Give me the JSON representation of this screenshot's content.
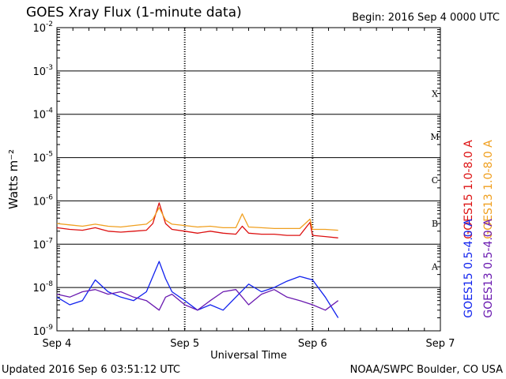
{
  "header": {
    "title": "GOES Xray Flux (1-minute data)",
    "begin": "Begin:  2016 Sep 4 0000 UTC"
  },
  "footer": {
    "updated": "Updated 2016 Sep  6 03:51:12 UTC",
    "credit": "NOAA/SWPC Boulder, CO USA"
  },
  "colors": {
    "goes15_long": "#dd1111",
    "goes13_long": "#f0a020",
    "goes15_short": "#1122ee",
    "goes13_short": "#6a1ab0"
  },
  "chart_data": {
    "type": "line",
    "title": "GOES Xray Flux (1-minute data)",
    "xlabel": "Universal Time",
    "ylabel": "Watts m⁻²",
    "yscale": "log",
    "ylim": [
      1e-09,
      0.01
    ],
    "xlim": [
      0,
      3
    ],
    "x_ticks": [
      {
        "x": 0,
        "label": "Sep 4"
      },
      {
        "x": 1,
        "label": "Sep 5"
      },
      {
        "x": 2,
        "label": "Sep 6"
      },
      {
        "x": 3,
        "label": "Sep 7"
      }
    ],
    "y_ticks": [
      {
        "exp": -9,
        "label": "10",
        "sup": "-9"
      },
      {
        "exp": -8,
        "label": "10",
        "sup": "-8"
      },
      {
        "exp": -7,
        "label": "10",
        "sup": "-7"
      },
      {
        "exp": -6,
        "label": "10",
        "sup": "-6"
      },
      {
        "exp": -5,
        "label": "10",
        "sup": "-5"
      },
      {
        "exp": -4,
        "label": "10",
        "sup": "-4"
      },
      {
        "exp": -3,
        "label": "10",
        "sup": "-3"
      },
      {
        "exp": -2,
        "label": "10",
        "sup": "-2"
      }
    ],
    "flare_classes": [
      {
        "label": "A",
        "exp": -8
      },
      {
        "label": "B",
        "exp": -7
      },
      {
        "label": "C",
        "exp": -6
      },
      {
        "label": "M",
        "exp": -5
      },
      {
        "label": "X",
        "exp": -4
      }
    ],
    "grid": true,
    "legend_position": "right",
    "series": [
      {
        "name": "GOES15 1.0-8.0 A",
        "color": "#dd1111",
        "x": [
          0,
          0.1,
          0.2,
          0.3,
          0.4,
          0.5,
          0.6,
          0.7,
          0.75,
          0.8,
          0.85,
          0.9,
          1.0,
          1.1,
          1.2,
          1.3,
          1.4,
          1.45,
          1.5,
          1.6,
          1.7,
          1.8,
          1.9,
          1.98,
          2.0,
          2.1,
          2.2
        ],
        "y": [
          2.4e-07,
          2.2e-07,
          2.1e-07,
          2.4e-07,
          2e-07,
          1.9e-07,
          2e-07,
          2.1e-07,
          3e-07,
          9e-07,
          3e-07,
          2.2e-07,
          2e-07,
          1.8e-07,
          2e-07,
          1.8e-07,
          1.7e-07,
          2.6e-07,
          1.8e-07,
          1.7e-07,
          1.7e-07,
          1.6e-07,
          1.6e-07,
          3.2e-07,
          1.6e-07,
          1.5e-07,
          1.4e-07
        ]
      },
      {
        "name": "GOES13 1.0-8.0 A",
        "color": "#f0a020",
        "x": [
          0,
          0.1,
          0.2,
          0.3,
          0.4,
          0.5,
          0.6,
          0.7,
          0.75,
          0.8,
          0.85,
          0.9,
          1.0,
          1.1,
          1.2,
          1.3,
          1.4,
          1.45,
          1.5,
          1.6,
          1.7,
          1.8,
          1.9,
          1.98,
          2.0,
          2.1,
          2.2
        ],
        "y": [
          3e-07,
          2.8e-07,
          2.6e-07,
          2.9e-07,
          2.6e-07,
          2.5e-07,
          2.7e-07,
          2.9e-07,
          3.8e-07,
          7e-07,
          3.6e-07,
          2.9e-07,
          2.7e-07,
          2.5e-07,
          2.6e-07,
          2.4e-07,
          2.4e-07,
          5e-07,
          2.5e-07,
          2.4e-07,
          2.3e-07,
          2.3e-07,
          2.3e-07,
          3.8e-07,
          2.2e-07,
          2.2e-07,
          2.1e-07
        ]
      },
      {
        "name": "GOES15 0.5-4.0 A",
        "color": "#1122ee",
        "x": [
          0,
          0.1,
          0.2,
          0.3,
          0.4,
          0.5,
          0.6,
          0.7,
          0.8,
          0.85,
          0.9,
          1.0,
          1.1,
          1.2,
          1.3,
          1.4,
          1.5,
          1.6,
          1.7,
          1.8,
          1.9,
          2.0,
          2.1,
          2.2
        ],
        "y": [
          6e-09,
          4e-09,
          5e-09,
          1.5e-08,
          8e-09,
          6e-09,
          5e-09,
          8e-09,
          4e-08,
          1.6e-08,
          8e-09,
          5e-09,
          3e-09,
          4e-09,
          3e-09,
          6e-09,
          1.2e-08,
          8e-09,
          1e-08,
          1.4e-08,
          1.8e-08,
          1.5e-08,
          6e-09,
          2e-09
        ]
      },
      {
        "name": "GOES13 0.5-4.0 A",
        "color": "#6a1ab0",
        "x": [
          0,
          0.1,
          0.2,
          0.3,
          0.4,
          0.5,
          0.6,
          0.7,
          0.8,
          0.85,
          0.9,
          1.0,
          1.1,
          1.2,
          1.3,
          1.4,
          1.5,
          1.6,
          1.7,
          1.8,
          1.9,
          2.0,
          2.1,
          2.2
        ],
        "y": [
          7e-09,
          6e-09,
          8e-09,
          9e-09,
          7e-09,
          8e-09,
          6e-09,
          5e-09,
          3e-09,
          6e-09,
          7e-09,
          4e-09,
          3e-09,
          5e-09,
          8e-09,
          9e-09,
          4e-09,
          7e-09,
          9e-09,
          6e-09,
          5e-09,
          4e-09,
          3e-09,
          5e-09
        ]
      }
    ]
  }
}
